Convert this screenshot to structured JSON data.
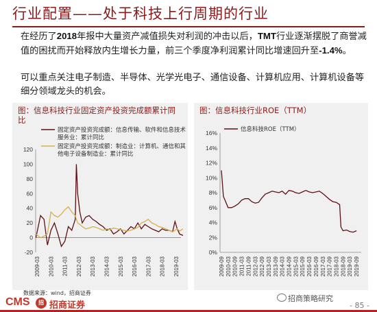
{
  "page": {
    "title": "行业配置——处于科技上行周期的行业",
    "paragraph1": {
      "pre": "在经历了",
      "year": "2018",
      "mid": "年报中大量资产减值损失对利润的冲击以后，",
      "tmt": "TMT",
      "post": "行业逐渐摆脱了商誉减值的困扰而开始释放内生增长力量，前三个季度净利润累计同比增速回升至",
      "value": "-1.4%",
      "end": "。"
    },
    "paragraph2": "可以重点关注电子制造、半导体、光学光电子、通信设备、计算机应用、计算机设备等细分领域龙头的机会。",
    "footnote": "数据来源：wind，招商证券",
    "logo_text": "CMS",
    "logo_badge": "招",
    "logo_cn": "招商证券",
    "wechat_text": "招商策略研究",
    "page_number": "- 85 -"
  },
  "colors": {
    "brand": "#8b1a1a",
    "series_dark": "#5b0f14",
    "series_gold": "#d4b04a",
    "panel_bg": "#f0f0f0"
  },
  "chart_data": [
    {
      "type": "line",
      "title": "图：信息科技行业固定资产投资完成额累计同比",
      "legend_placement": "top-left",
      "ylim": [
        -20,
        120
      ],
      "yticks": [
        "-20",
        "0",
        "20",
        "40",
        "60",
        "80",
        "100",
        "120"
      ],
      "xticks": [
        "2009-03",
        "2010-03",
        "2011-03",
        "2012-03",
        "2013-03",
        "2014-03",
        "2015-03",
        "2016-03",
        "2017-03",
        "2018-03",
        "2019-03"
      ],
      "x": [
        2009.17,
        2009.5,
        2009.75,
        2010.0,
        2010.25,
        2010.5,
        2010.75,
        2011.0,
        2011.25,
        2011.5,
        2011.75,
        2012.0,
        2012.08,
        2012.17,
        2012.33,
        2012.5,
        2012.75,
        2013.0,
        2013.25,
        2013.5,
        2013.75,
        2014.0,
        2014.25,
        2014.5,
        2014.75,
        2015.0,
        2015.25,
        2015.5,
        2015.75,
        2016.0,
        2016.25,
        2016.5,
        2016.75,
        2017.0,
        2017.25,
        2017.5,
        2017.75,
        2018.0,
        2018.25,
        2018.5,
        2018.75,
        2019.0,
        2019.17,
        2019.33,
        2019.5,
        2019.75
      ],
      "series": [
        {
          "name": "固定资产投资完成额：信息传输、软件和信息技术服务业：累计同比",
          "color": "#5b0f14",
          "values": [
            0,
            30,
            25,
            -10,
            10,
            20,
            5,
            -12,
            -5,
            15,
            10,
            25,
            100,
            60,
            35,
            20,
            28,
            30,
            25,
            22,
            18,
            15,
            10,
            12,
            5,
            8,
            12,
            5,
            10,
            15,
            12,
            20,
            12,
            18,
            15,
            12,
            10,
            8,
            12,
            10,
            10,
            8,
            22,
            12,
            5,
            3
          ]
        },
        {
          "name": "固定资产投资完成额：制造业：计算机、通信和其他电子设备制造业：累计同比",
          "color": "#d4b04a",
          "values": [
            5,
            0,
            2,
            5,
            35,
            30,
            28,
            32,
            38,
            42,
            35,
            30,
            25,
            20,
            18,
            15,
            12,
            13,
            15,
            14,
            12,
            10,
            12,
            11,
            13,
            12,
            11,
            10,
            9,
            10,
            12,
            14,
            20,
            22,
            25,
            20,
            18,
            15,
            14,
            12,
            10,
            8,
            10,
            12,
            9,
            12
          ]
        }
      ]
    },
    {
      "type": "line",
      "title": "图：信息科技行业ROE（TTM）",
      "legend_placement": "top-left",
      "ylim": [
        0,
        16
      ],
      "yticks": [
        "0%",
        "2%",
        "4%",
        "6%",
        "8%",
        "10%",
        "12%",
        "14%",
        "16%"
      ],
      "xticks": [
        "2009-09",
        "2010-03",
        "2010-09",
        "2011-03",
        "2011-09",
        "2012-03",
        "2012-09",
        "2013-03",
        "2013-09",
        "2014-03",
        "2014-09",
        "2015-03",
        "2015-09",
        "2016-03",
        "2016-09",
        "2017-03",
        "2017-09",
        "2018-03",
        "2018-09",
        "2019-03",
        "2019-09"
      ],
      "x": [
        2009.75,
        2009.9,
        2010.25,
        2010.5,
        2010.75,
        2011.0,
        2011.25,
        2011.5,
        2011.75,
        2012.0,
        2012.25,
        2012.5,
        2012.75,
        2013.0,
        2013.25,
        2013.5,
        2013.75,
        2014.0,
        2014.25,
        2014.5,
        2014.75,
        2015.0,
        2015.25,
        2015.5,
        2015.75,
        2016.0,
        2016.25,
        2016.5,
        2016.75,
        2017.0,
        2017.25,
        2017.5,
        2017.75,
        2018.0,
        2018.25,
        2018.5,
        2018.6,
        2018.75,
        2019.0,
        2019.25,
        2019.5,
        2019.75
      ],
      "series": [
        {
          "name": "信息科技ROE（TTM）",
          "color": "#5b0f14",
          "values": [
            11,
            7.5,
            6,
            6,
            6.2,
            6.5,
            7,
            7.2,
            7.2,
            6.8,
            6.6,
            6.7,
            7.3,
            7.8,
            8.0,
            8.2,
            8.1,
            8.0,
            8.2,
            7.8,
            8.3,
            8.2,
            8.0,
            7.9,
            8.1,
            8.3,
            8.1,
            8.0,
            8.1,
            8.2,
            7.9,
            7.5,
            7.1,
            6.8,
            6.7,
            6.4,
            3.4,
            2.9,
            3.0,
            2.8,
            2.7,
            2.9
          ]
        }
      ]
    }
  ]
}
